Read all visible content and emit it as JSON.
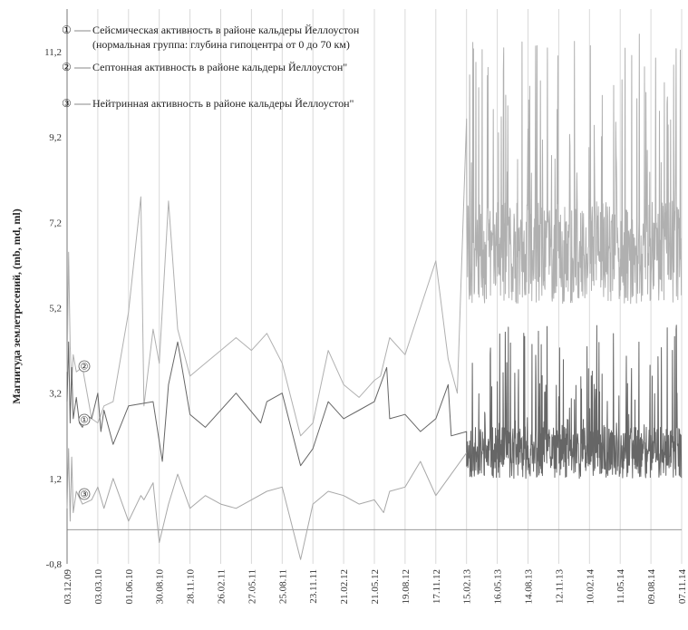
{
  "chart_data": {
    "type": "line",
    "ylabel": "Магнитуда  землетресений,  (mb, md, ml)",
    "xlabel": "",
    "title": "",
    "ylim": [
      -0.8,
      12.2
    ],
    "y_ticks": [
      "-0,8",
      "1,2",
      "3,2",
      "5,2",
      "7,2",
      "9,2",
      "11,2"
    ],
    "y_tick_values": [
      -0.8,
      1.2,
      3.2,
      5.2,
      7.2,
      9.2,
      11.2
    ],
    "baseline": 0,
    "grid": "vertical",
    "x_ticks": [
      "03.12.09",
      "03.03.10",
      "01.06.10",
      "30.08.10",
      "28.11.10",
      "26.02.11",
      "27.05.11",
      "25.08.11",
      "23.11.11",
      "21.02.12",
      "21.05.12",
      "19.08.12",
      "17.11.12",
      "15.02.13",
      "16.05.13",
      "14.08.13",
      "12.11.13",
      "10.02.14",
      "11.05.14",
      "09.08.14",
      "07.11.14"
    ],
    "legend": [
      {
        "marker": "①",
        "text": "Сейсмическая активность в районе кальдеры Йеллоустон",
        "text2": "(нормальная группа: глубина гипоцентра от 0 до 70 км)"
      },
      {
        "marker": "②",
        "text": "Септонная активность в районе кальдеры Йеллоустон\""
      },
      {
        "marker": "③",
        "text": "Нейтринная активность в районе кальдеры Йеллоустон\""
      }
    ],
    "series_markers": [
      "①",
      "②",
      "③"
    ],
    "series": [
      {
        "key": "1",
        "color": "#666666",
        "pre_x": [
          0,
          0.05,
          0.1,
          0.15,
          0.2,
          0.3,
          0.4,
          0.5,
          0.6,
          0.8,
          1.0,
          1.1,
          1.2,
          1.5,
          2.0,
          2.8,
          3.1,
          3.3,
          3.6,
          4.0,
          4.5,
          5.5,
          6.3,
          6.5,
          7.0,
          7.6,
          8.0,
          8.5,
          9.0,
          9.5,
          10.0,
          10.4,
          10.5,
          11.0,
          11.5,
          12.0,
          12.4,
          12.5,
          13.0
        ],
        "pre_y": [
          3.0,
          4.4,
          2.5,
          3.8,
          2.6,
          3.1,
          2.5,
          2.4,
          2.7,
          2.6,
          3.2,
          2.3,
          2.8,
          2.0,
          2.9,
          3.0,
          1.6,
          3.4,
          4.4,
          2.7,
          2.4,
          3.2,
          2.5,
          3.0,
          3.2,
          1.5,
          1.9,
          3.0,
          2.6,
          2.8,
          3.0,
          3.8,
          2.6,
          2.7,
          2.3,
          2.6,
          3.4,
          2.2,
          2.3
        ],
        "dense": {
          "from": 13.0,
          "to": 20.0,
          "count": 700,
          "base": 1.2,
          "spread": 1.2,
          "spike": 3.6,
          "seed": 11
        }
      },
      {
        "key": "2",
        "color": "#b0b0b0",
        "pre_x": [
          0,
          0.05,
          0.1,
          0.15,
          0.2,
          0.3,
          0.5,
          0.8,
          1.0,
          1.2,
          1.5,
          2.0,
          2.4,
          2.5,
          2.8,
          3.0,
          3.3,
          3.6,
          4.0,
          4.5,
          5.0,
          5.5,
          6.0,
          6.5,
          7.0,
          7.6,
          8.0,
          8.5,
          9.0,
          9.5,
          10.0,
          10.2,
          10.5,
          11.0,
          11.5,
          12.0,
          12.4,
          12.7
        ],
        "pre_y": [
          3.7,
          6.5,
          4.3,
          3.4,
          4.1,
          3.7,
          3.8,
          2.6,
          2.5,
          2.9,
          3.0,
          5.1,
          7.8,
          2.9,
          4.7,
          3.9,
          7.7,
          4.7,
          3.6,
          3.9,
          4.2,
          4.5,
          4.2,
          4.6,
          3.9,
          2.2,
          2.5,
          4.2,
          3.4,
          3.1,
          3.5,
          3.6,
          4.5,
          4.1,
          5.2,
          6.3,
          4.0,
          3.2
        ],
        "dense": {
          "from": 13.0,
          "to": 20.0,
          "count": 620,
          "base": 5.3,
          "spread": 2.4,
          "spike": 6.4,
          "seed": 29
        }
      },
      {
        "key": "3",
        "color": "#a8a8a8",
        "pre_x": [
          0,
          0.05,
          0.1,
          0.15,
          0.2,
          0.3,
          0.5,
          0.8,
          1.0,
          1.2,
          1.5,
          2.0,
          2.4,
          2.5,
          2.8,
          3.0,
          3.3,
          3.6,
          4.0,
          4.5,
          5.0,
          5.5,
          6.0,
          6.5,
          7.0,
          7.6,
          8.0,
          8.5,
          9.0,
          9.5,
          10.0,
          10.3,
          10.5,
          11.0,
          11.5,
          12.0,
          12.5,
          13.0
        ],
        "pre_y": [
          0.5,
          1.9,
          0.2,
          1.7,
          0.4,
          0.9,
          0.6,
          0.7,
          1.0,
          0.5,
          1.2,
          0.2,
          0.8,
          0.7,
          1.1,
          -0.3,
          0.6,
          1.3,
          0.5,
          0.8,
          0.6,
          0.5,
          0.7,
          0.9,
          1.0,
          -0.7,
          0.6,
          0.9,
          0.8,
          0.6,
          0.7,
          0.4,
          0.9,
          1.0,
          1.6,
          0.8,
          1.3,
          1.8
        ],
        "dense": null
      }
    ]
  }
}
